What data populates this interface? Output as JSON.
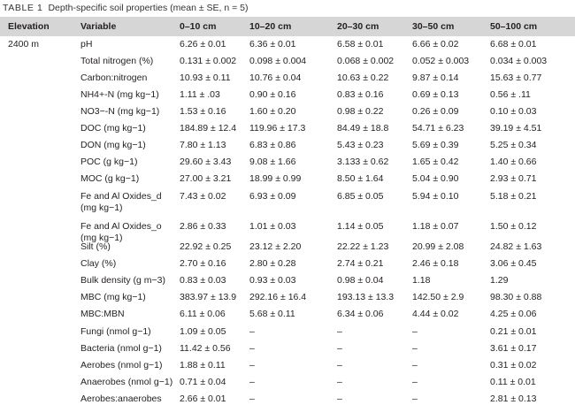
{
  "caption": {
    "label": "TABLE 1",
    "text": "Depth-specific soil properties (mean ± SE, n = 5)"
  },
  "columns": [
    "Elevation",
    "Variable",
    "0–10 cm",
    "10–20 cm",
    "20–30 cm",
    "30–50 cm",
    "50–100 cm"
  ],
  "elevation": "2400 m",
  "rows": [
    {
      "variable": "pH",
      "values": [
        "6.26 ± 0.01",
        "6.36 ± 0.01",
        "6.58 ± 0.01",
        "6.66 ± 0.02",
        "6.68 ± 0.01"
      ]
    },
    {
      "variable": "Total nitrogen (%)",
      "values": [
        "0.131 ± 0.002",
        "0.098 ± 0.004",
        "0.068 ± 0.002",
        "0.052 ± 0.003",
        "0.034 ± 0.003"
      ]
    },
    {
      "variable": "Carbon:nitrogen",
      "values": [
        "10.93 ± 0.11",
        "10.76 ± 0.04",
        "10.63 ± 0.22",
        "9.87 ± 0.14",
        "15.63 ± 0.77"
      ]
    },
    {
      "variable": "NH4+-N (mg kg−1)",
      "values": [
        "1.11 ± .03",
        "0.90 ± 0.16",
        "0.83 ± 0.16",
        "0.69 ± 0.13",
        "0.56 ± .11"
      ]
    },
    {
      "variable": "NO3−-N (mg kg−1)",
      "values": [
        "1.53 ± 0.16",
        "1.60 ± 0.20",
        "0.98 ± 0.22",
        "0.26 ± 0.09",
        "0.10 ± 0.03"
      ]
    },
    {
      "variable": "DOC (mg kg−1)",
      "values": [
        "184.89 ± 12.4",
        "119.96 ± 17.3",
        "84.49 ± 18.8",
        "54.71 ± 6.23",
        "39.19 ± 4.51"
      ]
    },
    {
      "variable": "DON (mg kg−1)",
      "values": [
        "7.80 ± 1.13",
        "6.83 ± 0.86",
        "5.43 ± 0.23",
        "5.69 ± 0.39",
        "5.25 ± 0.34"
      ]
    },
    {
      "variable": "POC (g kg−1)",
      "values": [
        "29.60 ± 3.43",
        "9.08 ± 1.66",
        "3.133 ± 0.62",
        "1.65 ± 0.42",
        "1.40 ± 0.66"
      ]
    },
    {
      "variable": "MOC (g kg−1)",
      "values": [
        "27.00 ± 3.21",
        "18.99 ± 0.99",
        "8.50 ± 1.64",
        "5.04 ± 0.90",
        "2.93 ± 0.71"
      ]
    },
    {
      "variable": "Fe and Al Oxides_d (mg kg−1)",
      "values": [
        "7.43 ± 0.02",
        "6.93 ± 0.09",
        "6.85 ± 0.05",
        "5.94 ± 0.10",
        "5.18 ± 0.21"
      ]
    },
    {
      "variable": "Fe and Al Oxides_o (mg kg−1)",
      "values": [
        "2.86 ± 0.33",
        "1.01 ± 0.03",
        "1.14 ± 0.05",
        "1.18 ± 0.07",
        "1.50 ± 0.12"
      ]
    },
    {
      "variable": "Silt (%)",
      "values": [
        "22.92 ± 0.25",
        "23.12 ± 2.20",
        "22.22 ± 1.23",
        "20.99 ± 2.08",
        "24.82 ± 1.63"
      ]
    },
    {
      "variable": "Clay (%)",
      "values": [
        "2.70 ± 0.16",
        "2.80 ± 0.28",
        "2.74 ± 0.21",
        "2.46 ± 0.18",
        "3.06 ± 0.45"
      ]
    },
    {
      "variable": "Bulk density (g m−3)",
      "values": [
        "0.83 ± 0.03",
        "0.93 ± 0.03",
        "0.98 ± 0.04",
        "1.18",
        "1.29"
      ]
    },
    {
      "variable": "MBC (mg kg−1)",
      "values": [
        "383.97 ± 13.9",
        "292.16 ± 16.4",
        "193.13 ± 13.3",
        "142.50 ± 2.9",
        "98.30 ± 0.88"
      ]
    },
    {
      "variable": "MBC:MBN",
      "values": [
        "6.11 ± 0.06",
        "5.68 ± 0.11",
        "6.34 ± 0.06",
        "4.44 ± 0.02",
        "4.25 ± 0.06"
      ]
    },
    {
      "variable": "Fungi (nmol g−1)",
      "values": [
        "1.09 ± 0.05",
        "–",
        "–",
        "–",
        "0.21 ± 0.01"
      ]
    },
    {
      "variable": "Bacteria (nmol g−1)",
      "values": [
        "11.42 ± 0.56",
        "–",
        "–",
        "–",
        "3.61 ± 0.17"
      ]
    },
    {
      "variable": "Aerobes (nmol g−1)",
      "values": [
        "1.88 ± 0.11",
        "–",
        "–",
        "–",
        "0.31 ± 0.02"
      ]
    },
    {
      "variable": "Anaerobes (nmol g−1)",
      "values": [
        "0.71 ± 0.04",
        "–",
        "–",
        "–",
        "0.11 ± 0.01"
      ]
    },
    {
      "variable": "Aerobes:anaerobes",
      "values": [
        "2.66 ± 0.01",
        "–",
        "–",
        "–",
        "2.81 ± 0.13"
      ]
    }
  ]
}
